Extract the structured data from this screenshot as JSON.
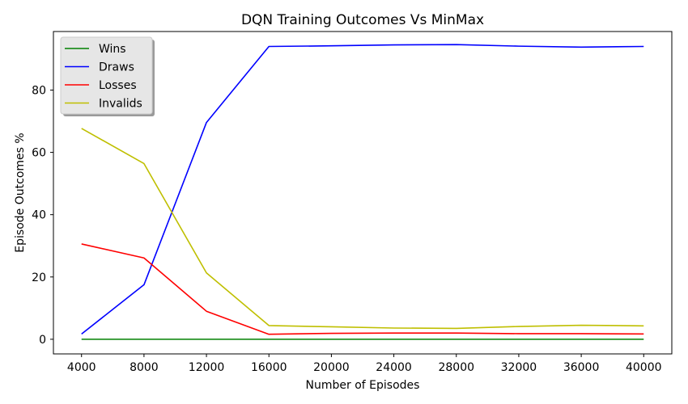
{
  "chart_data": {
    "type": "line",
    "title": "DQN Training Outcomes Vs MinMax",
    "xlabel": "Number of Episodes",
    "ylabel": "Episode Outcomes %",
    "x": [
      4000,
      8000,
      12000,
      16000,
      20000,
      24000,
      28000,
      32000,
      36000,
      40000
    ],
    "x_ticks": [
      "4000",
      "8000",
      "12000",
      "16000",
      "20000",
      "24000",
      "28000",
      "32000",
      "36000",
      "40000"
    ],
    "xlim": [
      2200,
      41800
    ],
    "ylim": [
      -4.7,
      98.8
    ],
    "y_ticks": [
      "0",
      "20",
      "40",
      "60",
      "80"
    ],
    "y_tick_values": [
      0,
      20,
      40,
      60,
      80
    ],
    "grid": false,
    "legend_position": "top-left",
    "series": [
      {
        "name": "Wins",
        "color": "#008000",
        "values": [
          0,
          0,
          0,
          0,
          0,
          0,
          0,
          0,
          0,
          0
        ]
      },
      {
        "name": "Draws",
        "color": "#0000ff",
        "values": [
          1.7,
          17.5,
          69.6,
          94.0,
          94.2,
          94.5,
          94.6,
          94.1,
          93.8,
          94.0
        ]
      },
      {
        "name": "Losses",
        "color": "#ff0000",
        "values": [
          30.6,
          26.1,
          9.0,
          1.6,
          1.9,
          2.0,
          2.0,
          1.8,
          1.8,
          1.7
        ]
      },
      {
        "name": "Invalids",
        "color": "#bfbf00",
        "values": [
          67.7,
          56.4,
          21.3,
          4.4,
          4.0,
          3.6,
          3.5,
          4.1,
          4.5,
          4.3
        ]
      }
    ]
  }
}
